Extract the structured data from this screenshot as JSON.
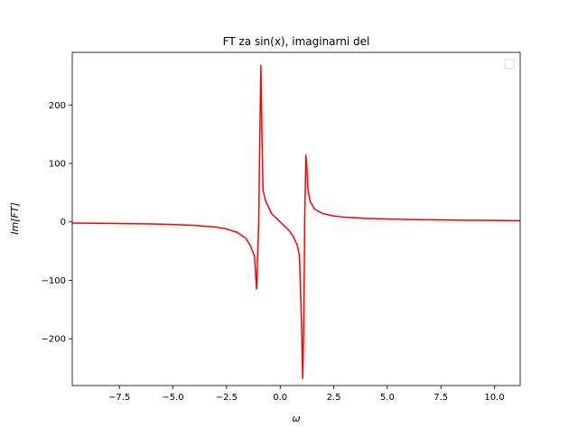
{
  "chart_data": {
    "type": "line",
    "title": "FT za sin(x), imaginarni del",
    "xlabel": "ω",
    "ylabel": "Im[FT]",
    "xlim": [
      -9.7,
      11.2
    ],
    "ylim": [
      -280,
      290
    ],
    "xticks": [
      -7.5,
      -5.0,
      -2.5,
      0.0,
      2.5,
      5.0,
      7.5,
      10.0
    ],
    "xtick_labels": [
      "−7.5",
      "−5.0",
      "−2.5",
      "0.0",
      "2.5",
      "5.0",
      "7.5",
      "10.0"
    ],
    "yticks": [
      -200,
      -100,
      0,
      100,
      200
    ],
    "ytick_labels": [
      "−200",
      "−100",
      "0",
      "100",
      "200"
    ],
    "grid": false,
    "legend": {
      "placement": "top-right",
      "entries": []
    },
    "series": [
      {
        "color": "#ff0000",
        "x": [
          -9.7,
          -8,
          -6,
          -5,
          -4,
          -3,
          -2.5,
          -2,
          -1.6,
          -1.4,
          -1.2,
          -1.1,
          -1.05,
          -1.0,
          -0.95,
          -0.9,
          -0.85,
          -0.8,
          -0.7,
          -0.55,
          -0.4,
          -0.2,
          0,
          0.2,
          0.4,
          0.6,
          0.8,
          0.9,
          1.0,
          1.05,
          1.1,
          1.15,
          1.2,
          1.25,
          1.3,
          1.4,
          1.6,
          2.0,
          2.5,
          3,
          4,
          5,
          6,
          8,
          10,
          11.2
        ],
        "y": [
          -2,
          -2.5,
          -3.5,
          -4.5,
          -6,
          -9,
          -12,
          -18,
          -28,
          -40,
          -58,
          -115,
          -60,
          0,
          140,
          268,
          150,
          55,
          38,
          26,
          14,
          7,
          0,
          -7,
          -14,
          -24,
          -40,
          -58,
          -175,
          -268,
          -180,
          10,
          114,
          90,
          55,
          35,
          22,
          14,
          10,
          8,
          6,
          5,
          4,
          3,
          2.4,
          2
        ]
      }
    ]
  }
}
